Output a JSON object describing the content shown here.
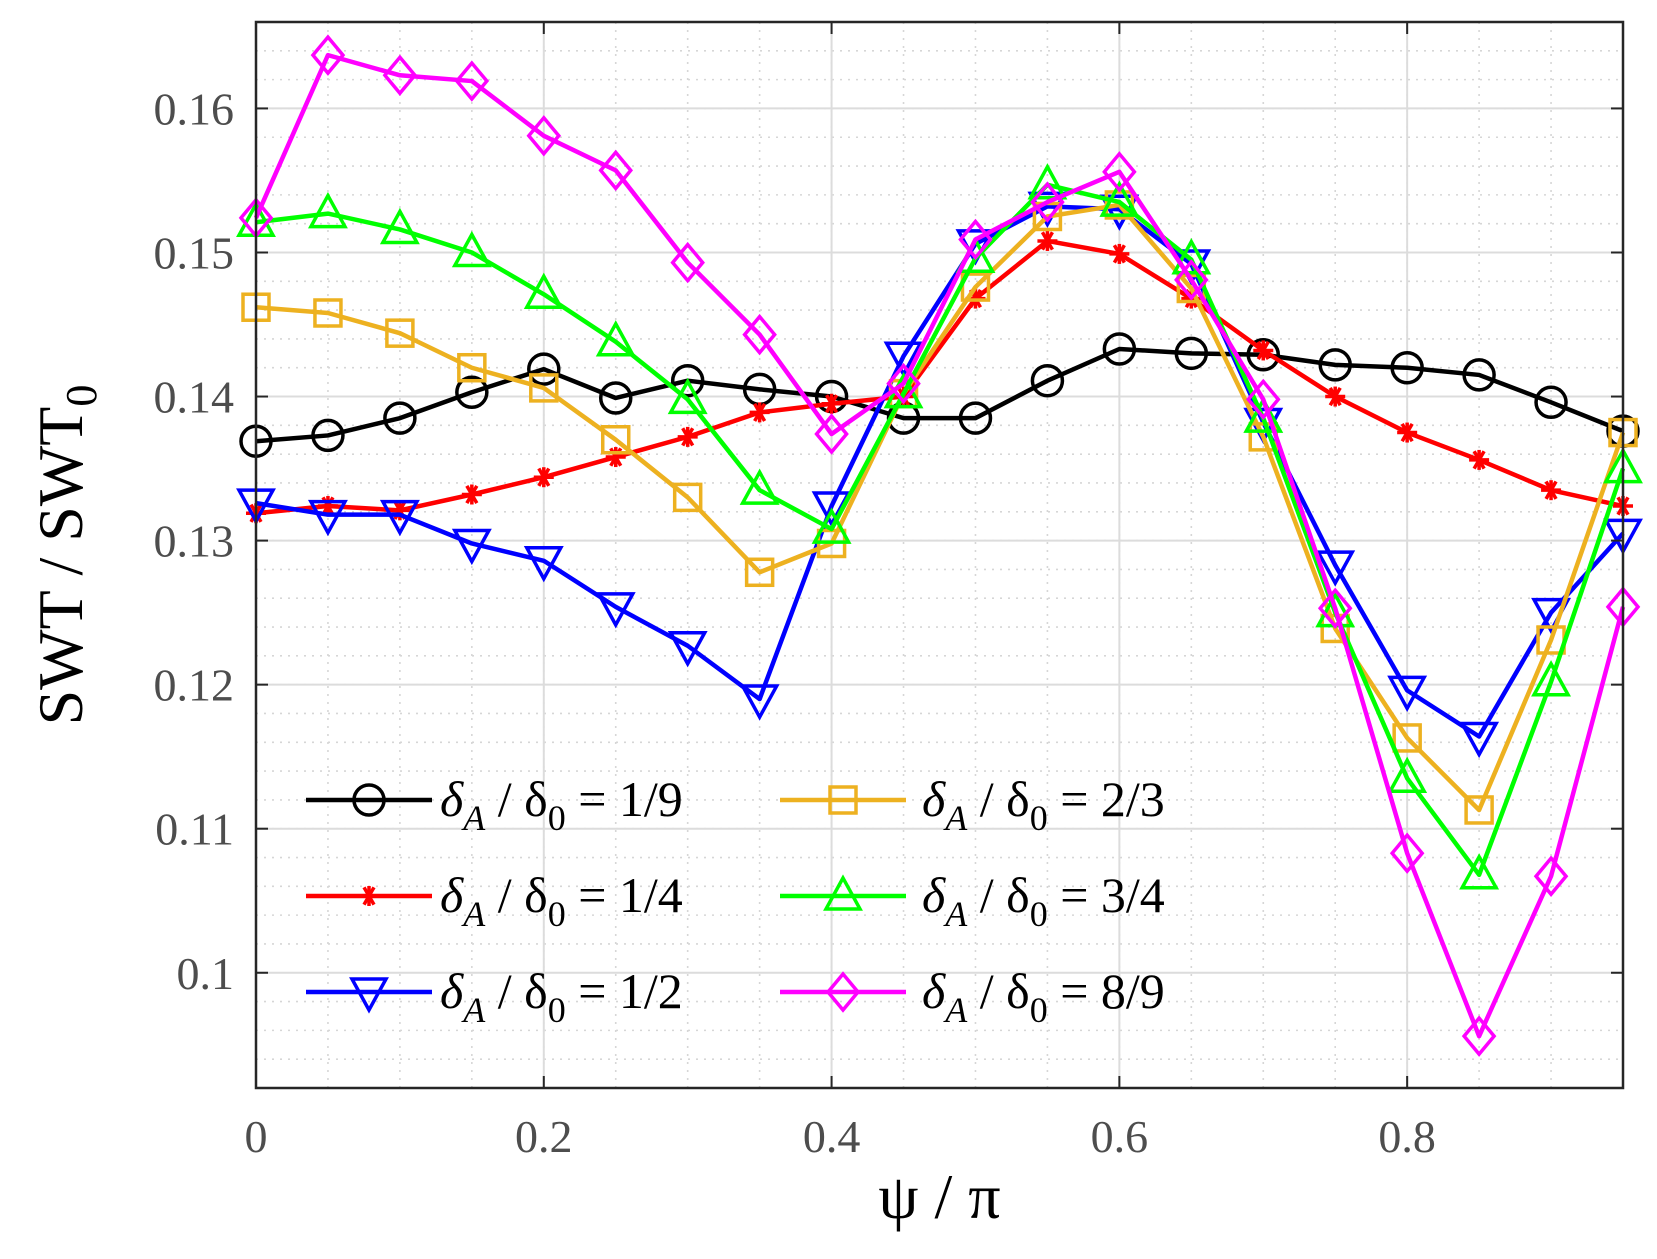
{
  "chart_data": {
    "type": "line",
    "xlabel": "ψ / π",
    "ylabel": {
      "main": "SWT / SWT",
      "sub": "0"
    },
    "xlim": [
      0,
      0.95
    ],
    "ylim": [
      0.092,
      0.166
    ],
    "grid": true,
    "minor_grid": true,
    "legend_position": "lower-left",
    "legend_label": {
      "prefix": "δ",
      "sub1": "A",
      "mid": " / δ",
      "sub2": "0",
      "eq": " = "
    },
    "xticks": [
      {
        "value": 0,
        "label": "0"
      },
      {
        "value": 0.2,
        "label": "0.2"
      },
      {
        "value": 0.4,
        "label": "0.4"
      },
      {
        "value": 0.6,
        "label": "0.6"
      },
      {
        "value": 0.8,
        "label": "0.8"
      }
    ],
    "yticks": [
      {
        "value": 0.1,
        "label": "0.1"
      },
      {
        "value": 0.11,
        "label": "0.11"
      },
      {
        "value": 0.12,
        "label": "0.12"
      },
      {
        "value": 0.13,
        "label": "0.13"
      },
      {
        "value": 0.14,
        "label": "0.14"
      },
      {
        "value": 0.15,
        "label": "0.15"
      },
      {
        "value": 0.16,
        "label": "0.16"
      }
    ],
    "x": [
      0,
      0.05,
      0.1,
      0.15,
      0.2,
      0.25,
      0.3,
      0.35,
      0.4,
      0.45,
      0.5,
      0.55,
      0.6,
      0.65,
      0.7,
      0.75,
      0.8,
      0.85,
      0.9,
      0.95
    ],
    "series": [
      {
        "name": "1/9",
        "color": "#000000",
        "marker": "circle",
        "values": [
          0.1369,
          0.1373,
          0.1385,
          0.1403,
          0.1419,
          0.1399,
          0.1411,
          0.1405,
          0.14,
          0.1385,
          0.1385,
          0.1411,
          0.1433,
          0.143,
          0.1429,
          0.1422,
          0.142,
          0.1415,
          0.1396,
          0.1376
        ]
      },
      {
        "name": "1/4",
        "color": "#ff0000",
        "marker": "asterisk",
        "values": [
          0.1319,
          0.1324,
          0.1321,
          0.1332,
          0.1344,
          0.1358,
          0.1372,
          0.1389,
          0.1395,
          0.14,
          0.1468,
          0.1508,
          0.1499,
          0.1468,
          0.1432,
          0.14,
          0.1375,
          0.1356,
          0.1335,
          0.1324
        ]
      },
      {
        "name": "1/2",
        "color": "#0000ff",
        "marker": "triangle-down",
        "values": [
          0.1326,
          0.1318,
          0.1318,
          0.1298,
          0.1286,
          0.1254,
          0.1227,
          0.119,
          0.1324,
          0.1428,
          0.1506,
          0.1532,
          0.153,
          0.1492,
          0.1382,
          0.1283,
          0.1196,
          0.1164,
          0.125,
          0.1305
        ]
      },
      {
        "name": "2/3",
        "color": "#edb120",
        "marker": "square",
        "values": [
          0.1462,
          0.1458,
          0.1444,
          0.142,
          0.1406,
          0.137,
          0.133,
          0.1278,
          0.1298,
          0.1402,
          0.1476,
          0.1525,
          0.1533,
          0.1475,
          0.1372,
          0.1239,
          0.1163,
          0.1113,
          0.1231,
          0.1375
        ]
      },
      {
        "name": "3/4",
        "color": "#00ff00",
        "marker": "triangle-up",
        "values": [
          0.1521,
          0.1527,
          0.1516,
          0.15,
          0.1471,
          0.1438,
          0.1398,
          0.1335,
          0.1308,
          0.1402,
          0.1496,
          0.1547,
          0.1535,
          0.1495,
          0.1385,
          0.125,
          0.1135,
          0.1068,
          0.1202,
          0.135
        ]
      },
      {
        "name": "8/9",
        "color": "#ff00ff",
        "marker": "diamond",
        "values": [
          0.1524,
          0.1637,
          0.1623,
          0.1619,
          0.1581,
          0.1557,
          0.1493,
          0.1443,
          0.1374,
          0.1409,
          0.1509,
          0.1535,
          0.1556,
          0.1481,
          0.1398,
          0.1253,
          0.1083,
          0.0956,
          0.1067,
          0.1254
        ]
      }
    ]
  }
}
